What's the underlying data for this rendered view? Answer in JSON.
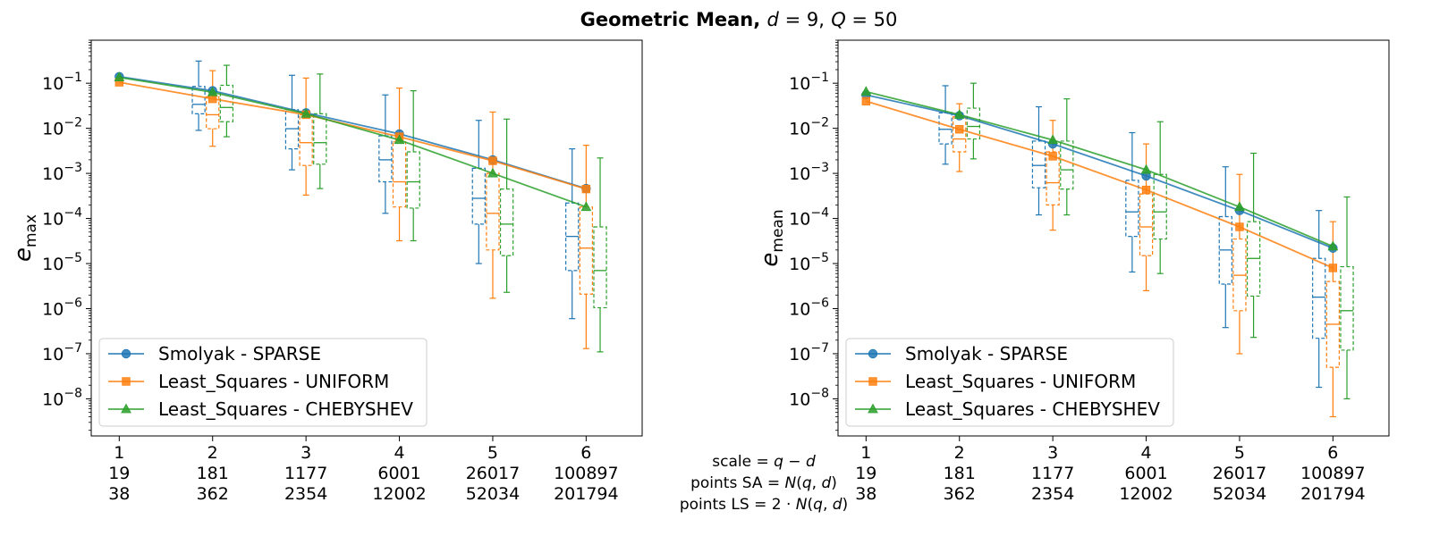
{
  "title": {
    "prefix": "Geometric Mean,",
    "var1": "d",
    "val1": " = 9,",
    "var2": "Q",
    "val2": " = 50"
  },
  "colors": {
    "smolyak": "#1f77b4",
    "uniform": "#ff7f0e",
    "chebyshev": "#2ca02c"
  },
  "chart_data": [
    {
      "type": "line",
      "ylabel": "e",
      "ylabel_sub": "max",
      "yscale": "log",
      "ylim": [
        1.5e-09,
        0.9
      ],
      "xlim": [
        0.7,
        6.6
      ],
      "grid": false,
      "legend_position": "lower-left",
      "x": [
        1,
        2,
        3,
        4,
        5,
        6
      ],
      "tick_rows": [
        [
          "1",
          "2",
          "3",
          "4",
          "5",
          "6"
        ],
        [
          "19",
          "181",
          "1177",
          "6001",
          "26017",
          "100897"
        ],
        [
          "38",
          "362",
          "2354",
          "12002",
          "52034",
          "201794"
        ]
      ],
      "yticks": [
        {
          "v": 1e-08,
          "base": "10",
          "exp": "−8"
        },
        {
          "v": 1e-07,
          "base": "10",
          "exp": "−7"
        },
        {
          "v": 1e-06,
          "base": "10",
          "exp": "−6"
        },
        {
          "v": 1e-05,
          "base": "10",
          "exp": "−5"
        },
        {
          "v": 0.0001,
          "base": "10",
          "exp": "−4"
        },
        {
          "v": 0.001,
          "base": "10",
          "exp": "−3"
        },
        {
          "v": 0.01,
          "base": "10",
          "exp": "−2"
        },
        {
          "v": 0.1,
          "base": "10",
          "exp": "−1"
        }
      ],
      "series": [
        {
          "name": "Smolyak - SPARSE",
          "color": "smolyak",
          "marker": "circle",
          "values": [
            0.14,
            0.068,
            0.022,
            0.0075,
            0.002,
            0.00046
          ],
          "boxes": [
            null,
            {
              "x": 1.85,
              "wmin": 0.009,
              "q1": 0.021,
              "med": 0.034,
              "q3": 0.085,
              "wmax": 0.31
            },
            {
              "x": 2.85,
              "wmin": 0.0012,
              "q1": 0.0035,
              "med": 0.0098,
              "q3": 0.026,
              "wmax": 0.15
            },
            {
              "x": 3.85,
              "wmin": 0.00013,
              "q1": 0.00065,
              "med": 0.002,
              "q3": 0.0068,
              "wmax": 0.055
            },
            {
              "x": 4.85,
              "wmin": 1e-05,
              "q1": 7.5e-05,
              "med": 0.00028,
              "q3": 0.0013,
              "wmax": 0.015
            },
            {
              "x": 5.85,
              "wmin": 6e-07,
              "q1": 7e-06,
              "med": 4e-05,
              "q3": 0.00022,
              "wmax": 0.0035
            }
          ]
        },
        {
          "name": "Least_Squares - UNIFORM",
          "color": "uniform",
          "marker": "square",
          "values": [
            0.105,
            0.045,
            0.02,
            0.0065,
            0.0019,
            0.00045
          ],
          "boxes": [
            null,
            {
              "x": 2.0,
              "wmin": 0.004,
              "q1": 0.0098,
              "med": 0.02,
              "q3": 0.05,
              "wmax": 0.19
            },
            {
              "x": 3.0,
              "wmin": 0.00033,
              "q1": 0.0015,
              "med": 0.0048,
              "q3": 0.02,
              "wmax": 0.13
            },
            {
              "x": 4.0,
              "wmin": 3.2e-05,
              "q1": 0.00018,
              "med": 0.00065,
              "q3": 0.005,
              "wmax": 0.078
            },
            {
              "x": 5.0,
              "wmin": 1.7e-06,
              "q1": 2e-05,
              "med": 0.00013,
              "q3": 0.001,
              "wmax": 0.023
            },
            {
              "x": 6.0,
              "wmin": 1.3e-07,
              "q1": 2.1e-06,
              "med": 2.2e-05,
              "q3": 0.00018,
              "wmax": 0.0042
            }
          ]
        },
        {
          "name": "Least_Squares - CHEBYSHEV",
          "color": "chebyshev",
          "marker": "triangle",
          "values": [
            0.135,
            0.063,
            0.021,
            0.0055,
            0.001,
            0.00018
          ],
          "boxes": [
            null,
            {
              "x": 2.15,
              "wmin": 0.0065,
              "q1": 0.014,
              "med": 0.029,
              "q3": 0.09,
              "wmax": 0.25
            },
            {
              "x": 3.15,
              "wmin": 0.00046,
              "q1": 0.0016,
              "med": 0.0048,
              "q3": 0.021,
              "wmax": 0.16
            },
            {
              "x": 4.15,
              "wmin": 3.2e-05,
              "q1": 0.00017,
              "med": 0.00065,
              "q3": 0.003,
              "wmax": 0.068
            },
            {
              "x": 5.15,
              "wmin": 2.3e-06,
              "q1": 1.5e-05,
              "med": 7.5e-05,
              "q3": 0.00045,
              "wmax": 0.016
            },
            {
              "x": 6.15,
              "wmin": 1.1e-07,
              "q1": 1.05e-06,
              "med": 7e-06,
              "q3": 6.5e-05,
              "wmax": 0.0022
            }
          ]
        }
      ]
    },
    {
      "type": "line",
      "ylabel": "e",
      "ylabel_sub": "mean",
      "yscale": "log",
      "ylim": [
        1.5e-09,
        0.9
      ],
      "xlim": [
        0.7,
        6.6
      ],
      "grid": false,
      "legend_position": "lower-left",
      "x": [
        1,
        2,
        3,
        4,
        5,
        6
      ],
      "tick_rows": [
        [
          "1",
          "2",
          "3",
          "4",
          "5",
          "6"
        ],
        [
          "19",
          "181",
          "1177",
          "6001",
          "26017",
          "100897"
        ],
        [
          "38",
          "362",
          "2354",
          "12002",
          "52034",
          "201794"
        ]
      ],
      "yticks": [
        {
          "v": 1e-08,
          "base": "10",
          "exp": "−8"
        },
        {
          "v": 1e-07,
          "base": "10",
          "exp": "−7"
        },
        {
          "v": 1e-06,
          "base": "10",
          "exp": "−6"
        },
        {
          "v": 1e-05,
          "base": "10",
          "exp": "−5"
        },
        {
          "v": 0.0001,
          "base": "10",
          "exp": "−4"
        },
        {
          "v": 0.001,
          "base": "10",
          "exp": "−3"
        },
        {
          "v": 0.01,
          "base": "10",
          "exp": "−2"
        },
        {
          "v": 0.1,
          "base": "10",
          "exp": "−1"
        }
      ],
      "series": [
        {
          "name": "Smolyak - SPARSE",
          "color": "smolyak",
          "marker": "circle",
          "values": [
            0.055,
            0.019,
            0.0045,
            0.00088,
            0.00015,
            2.2e-05
          ],
          "boxes": [
            null,
            {
              "x": 1.85,
              "wmin": 0.0016,
              "q1": 0.0045,
              "med": 0.0095,
              "q3": 0.022,
              "wmax": 0.088
            },
            {
              "x": 2.85,
              "wmin": 0.00012,
              "q1": 0.00048,
              "med": 0.0015,
              "q3": 0.0052,
              "wmax": 0.03
            },
            {
              "x": 3.85,
              "wmin": 6.5e-06,
              "q1": 4e-05,
              "med": 0.00014,
              "q3": 0.0007,
              "wmax": 0.008
            },
            {
              "x": 4.85,
              "wmin": 3.8e-07,
              "q1": 3.5e-06,
              "med": 2e-05,
              "q3": 0.00011,
              "wmax": 0.0014
            },
            {
              "x": 5.85,
              "wmin": 1.8e-08,
              "q1": 2.2e-07,
              "med": 1.8e-06,
              "q3": 1.3e-05,
              "wmax": 0.00015
            }
          ]
        },
        {
          "name": "Least_Squares - UNIFORM",
          "color": "uniform",
          "marker": "square",
          "values": [
            0.04,
            0.0095,
            0.0024,
            0.00043,
            6.5e-05,
            8e-06
          ],
          "boxes": [
            null,
            {
              "x": 2.0,
              "wmin": 0.0011,
              "q1": 0.003,
              "med": 0.0058,
              "q3": 0.018,
              "wmax": 0.035
            },
            {
              "x": 3.0,
              "wmin": 5.5e-05,
              "q1": 0.0002,
              "med": 0.00062,
              "q3": 0.003,
              "wmax": 0.015
            },
            {
              "x": 4.0,
              "wmin": 2.5e-06,
              "q1": 1.5e-05,
              "med": 6.5e-05,
              "q3": 0.00035,
              "wmax": 0.0045
            },
            {
              "x": 5.0,
              "wmin": 1e-07,
              "q1": 9e-07,
              "med": 5.5e-06,
              "q3": 3.5e-05,
              "wmax": 0.00095
            },
            {
              "x": 6.0,
              "wmin": 4e-09,
              "q1": 5e-08,
              "med": 4.5e-07,
              "q3": 4e-06,
              "wmax": 8.5e-05
            }
          ]
        },
        {
          "name": "Least_Squares - CHEBYSHEV",
          "color": "chebyshev",
          "marker": "triangle",
          "values": [
            0.065,
            0.02,
            0.0055,
            0.0012,
            0.00018,
            2.4e-05
          ],
          "boxes": [
            null,
            {
              "x": 2.15,
              "wmin": 0.0021,
              "q1": 0.0058,
              "med": 0.011,
              "q3": 0.028,
              "wmax": 0.1
            },
            {
              "x": 3.15,
              "wmin": 0.00012,
              "q1": 0.00045,
              "med": 0.0012,
              "q3": 0.0052,
              "wmax": 0.045
            },
            {
              "x": 4.15,
              "wmin": 6e-06,
              "q1": 3.5e-05,
              "med": 0.00014,
              "q3": 0.00095,
              "wmax": 0.014
            },
            {
              "x": 5.15,
              "wmin": 2.3e-07,
              "q1": 1.9e-06,
              "med": 1.3e-05,
              "q3": 8.5e-05,
              "wmax": 0.0028
            },
            {
              "x": 6.15,
              "wmin": 1e-08,
              "q1": 1.2e-07,
              "med": 9e-07,
              "q3": 8.5e-06,
              "wmax": 0.0003
            }
          ]
        }
      ]
    }
  ],
  "center_labels": {
    "line1": {
      "pre": "scale = ",
      "it1": "q",
      "mid": " − ",
      "it2": "d",
      "post": ""
    },
    "line2": {
      "pre": "points SA = ",
      "it1": "N",
      "mid": "(",
      "it2": "q",
      "post": ", ",
      "it3": "d",
      "end": ")"
    },
    "line3": {
      "pre": "points LS = 2 · ",
      "it1": "N",
      "mid": "(",
      "it2": "q",
      "post": ", ",
      "it3": "d",
      "end": ")"
    }
  }
}
